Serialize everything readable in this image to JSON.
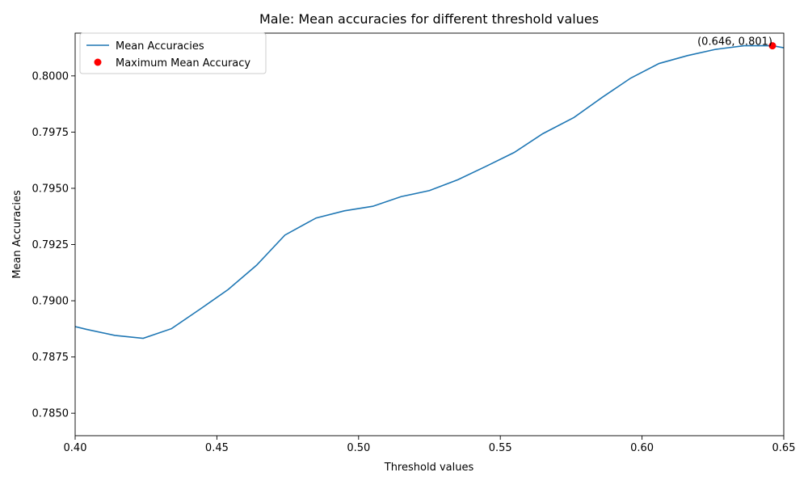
{
  "chart_data": {
    "type": "line",
    "title": "Male: Mean accuracies for different threshold values",
    "xlabel": "Threshold values",
    "ylabel": "Mean Accuracies",
    "xlim": [
      0.4,
      0.65
    ],
    "ylim": [
      0.784,
      0.8019
    ],
    "x_ticks": [
      0.4,
      0.45,
      0.5,
      0.55,
      0.6,
      0.65
    ],
    "x_tick_labels": [
      "0.40",
      "0.45",
      "0.50",
      "0.55",
      "0.60",
      "0.65"
    ],
    "y_ticks": [
      0.785,
      0.7875,
      0.79,
      0.7925,
      0.795,
      0.7975,
      0.8
    ],
    "y_tick_labels": [
      "0.7850",
      "0.7875",
      "0.7900",
      "0.7925",
      "0.7950",
      "0.7975",
      "0.8000"
    ],
    "grid": false,
    "legend_position": "top-left",
    "series": [
      {
        "name": "Mean Accuracies",
        "color": "#1f77b4",
        "x": [
          0.4,
          0.404,
          0.414,
          0.424,
          0.434,
          0.444,
          0.454,
          0.464,
          0.474,
          0.485,
          0.495,
          0.505,
          0.515,
          0.525,
          0.535,
          0.545,
          0.555,
          0.565,
          0.576,
          0.586,
          0.596,
          0.606,
          0.616,
          0.626,
          0.636,
          0.646,
          0.65
        ],
        "y": [
          0.78885,
          0.78873,
          0.78846,
          0.78833,
          0.78876,
          0.78962,
          0.7905,
          0.79158,
          0.79292,
          0.79368,
          0.794,
          0.7942,
          0.79463,
          0.7949,
          0.79538,
          0.79598,
          0.7966,
          0.79743,
          0.79815,
          0.79905,
          0.7999,
          0.80055,
          0.8009,
          0.80118,
          0.80134,
          0.80134,
          0.80125
        ]
      }
    ],
    "highlight": {
      "name": "Maximum Mean Accuracy",
      "color": "#ff0000",
      "x": 0.646,
      "y": 0.80134,
      "annotation": "(0.646, 0.801)"
    }
  }
}
